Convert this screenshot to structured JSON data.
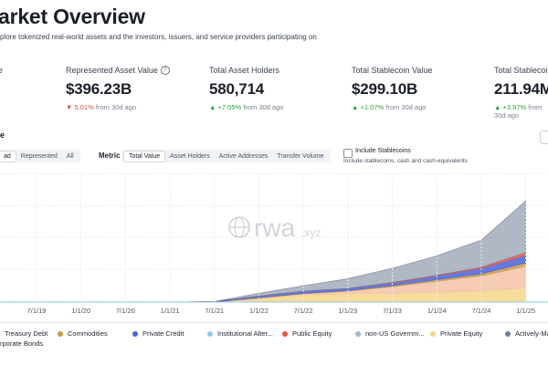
{
  "page": {
    "title": "arket Overview",
    "subtitle": "plore tokenized real-world assets and the investors, issuers, and service providers participating on"
  },
  "stats": [
    {
      "label": "e",
      "value": "",
      "change_value": "",
      "change_suffix": ""
    },
    {
      "label": "Represented Asset Value",
      "value": "$396.23B",
      "change_value": "▼ 5.01%",
      "change_suffix": "from 30d ago",
      "direction": "down"
    },
    {
      "label": "Total Asset Holders",
      "value": "580,714",
      "change_value": "▲ +7.05%",
      "change_suffix": "from 30d ago",
      "direction": "up"
    },
    {
      "label": "Total Stablecoin Value",
      "value": "$299.10B",
      "change_value": "▲ +1.07%",
      "change_suffix": "from 30d ago",
      "direction": "up"
    },
    {
      "label": "Total Stablecoin",
      "value": "211.94M",
      "change_value": "▲ +3.97%",
      "change_suffix": "from 30d ago",
      "direction": "up"
    }
  ],
  "section": {
    "title": "e"
  },
  "value_toggle": [
    "ad",
    "Represented",
    "All"
  ],
  "metric": {
    "label": "Metric",
    "options": [
      "Total Value",
      "Asset Holders",
      "Active Addresses",
      "Transfer Volume"
    ],
    "active": "Total Value"
  },
  "stablecoin": {
    "label": "Include Stablecoins",
    "description": "Include stablecoins, cash and cash-equivalents",
    "checked": false
  },
  "watermark": {
    "text": "rwa",
    "suffix": ".xyz"
  },
  "colors": {
    "active_managed": "#6f7d95",
    "private_equity": "#f4d78a",
    "treasury": "#f3c3a6",
    "public_equity": "#e8584a",
    "private_credit": "#4a63d6",
    "institutional": "#8ec9e8",
    "commodities": "#c99a4a",
    "non_us": "#9fb7d3",
    "grid": "#e9ebef"
  },
  "chart_data": {
    "type": "area",
    "x": [
      "7/1/19",
      "1/1/20",
      "7/1/20",
      "1/1/21",
      "7/1/21",
      "1/1/22",
      "7/1/22",
      "1/1/23",
      "7/1/23",
      "1/1/24",
      "7/1/24",
      "1/1/25"
    ],
    "x_tick_labels": [
      "7/1/19",
      "1/1/20",
      "7/1/20",
      "1/1/21",
      "7/1/21",
      "1/1/22",
      "7/1/22",
      "1/1/23",
      "7/1/23",
      "1/1/24",
      "7/1/24",
      "1/1/25"
    ],
    "stacked": true,
    "grid": true,
    "legend": "bottom",
    "series": [
      {
        "name": "Treasury Debt",
        "values": [
          0,
          0,
          0,
          0,
          0,
          0.1,
          0.2,
          0.5,
          1.2,
          2.0,
          2.8,
          4.0
        ]
      },
      {
        "name": "Commodities",
        "values": [
          0,
          0,
          0,
          0,
          0,
          0.1,
          0.1,
          0.1,
          0.2,
          0.3,
          0.4,
          0.6
        ]
      },
      {
        "name": "Private Credit",
        "values": [
          0,
          0,
          0,
          0,
          0.1,
          0.3,
          0.4,
          0.4,
          0.5,
          0.7,
          1.0,
          1.4
        ]
      },
      {
        "name": "Public Equity",
        "values": [
          0,
          0,
          0,
          0,
          0,
          0,
          0,
          0,
          0.1,
          0.1,
          0.2,
          0.5
        ]
      },
      {
        "name": "Private Equity",
        "values": [
          0,
          0,
          0,
          0,
          0,
          0.6,
          1.3,
          1.5,
          1.6,
          1.8,
          2.0,
          2.6
        ]
      },
      {
        "name": "Actively-Managed Strategies",
        "values": [
          0,
          0,
          0,
          0,
          0,
          0.5,
          1.0,
          1.8,
          2.6,
          3.6,
          5.0,
          9.5
        ]
      }
    ]
  },
  "legend": {
    "row1": [
      {
        "label": "Treasury Debt",
        "color": "#f3c3a6"
      },
      {
        "label": "Commodities",
        "color": "#c99a4a"
      },
      {
        "label": "Private Credit",
        "color": "#4a63d6"
      },
      {
        "label": "Institutional Alter...",
        "color": "#8ec9e8"
      },
      {
        "label": "Public Equity",
        "color": "#e8584a"
      },
      {
        "label": "non-US Governm...",
        "color": "#9fb7d3"
      },
      {
        "label": "Private Equity",
        "color": "#f4d78a"
      },
      {
        "label": "Actively-Ma",
        "color": "#6f7d95"
      }
    ],
    "row2": "rporate Bonds"
  }
}
